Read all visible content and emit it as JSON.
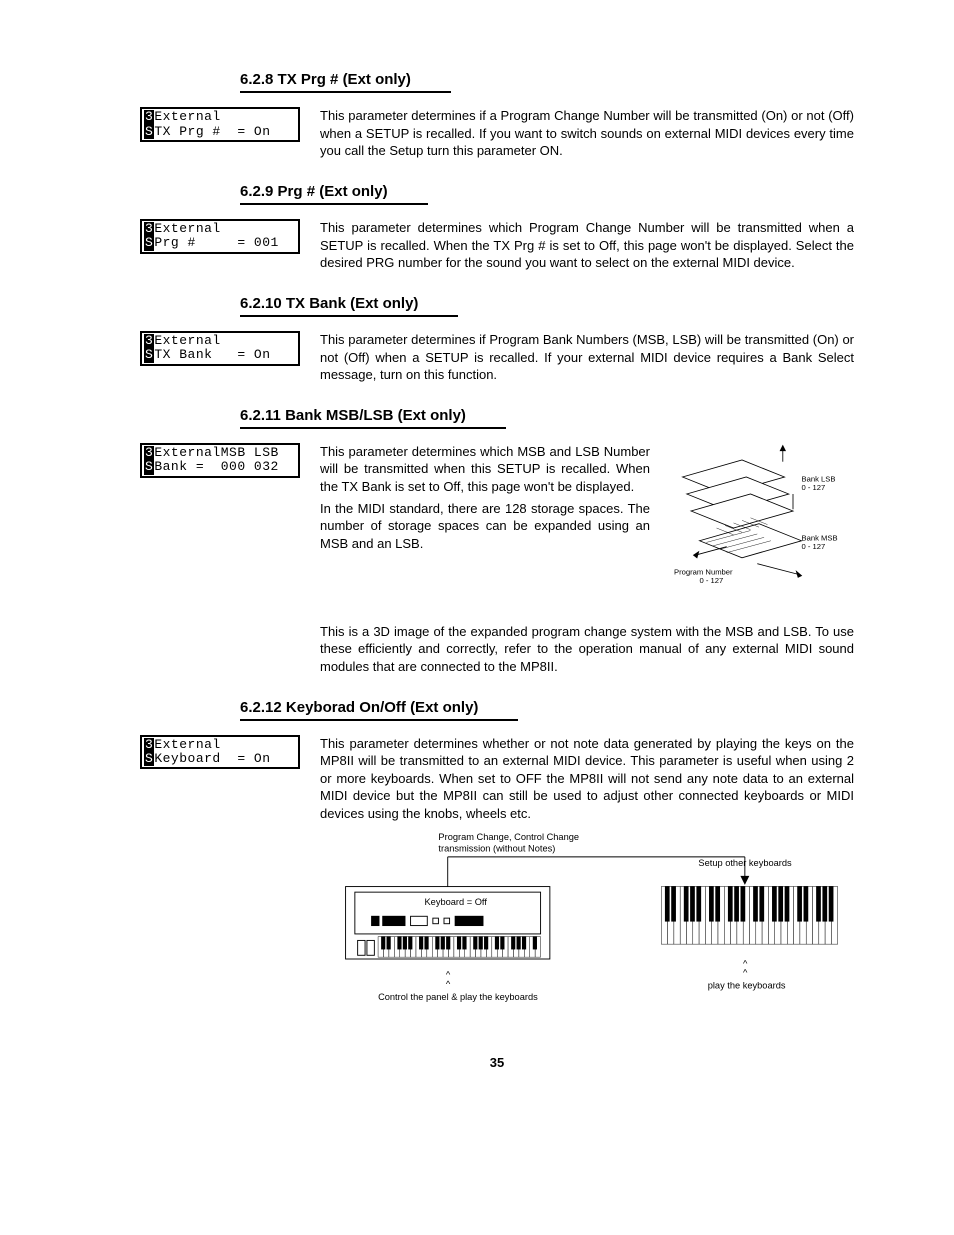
{
  "sections": [
    {
      "num": "6.2.8",
      "title": "TX Prg # (Ext only)",
      "lcd": {
        "l1p": "3",
        "l1": "External",
        "l2p": "S",
        "l2": "TX Prg #  = On"
      },
      "paras": [
        "This parameter determines if a Program Change Number will be transmitted (On) or not (Off) when a SETUP is recalled.  If you want to switch sounds on external MIDI devices every time you call the Setup turn this parameter ON."
      ]
    },
    {
      "num": "6.2.9",
      "title": "Prg # (Ext only)",
      "lcd": {
        "l1p": "3",
        "l1": "External",
        "l2p": "S",
        "l2": "Prg #     = 001"
      },
      "paras": [
        "This parameter determines which Program Change Number will be transmitted when a SETUP is recalled.  When the TX Prg # is set to Off, this page won't be displayed.  Select the desired PRG number for the sound you want to select on the external MIDI device."
      ]
    },
    {
      "num": "6.2.10",
      "title": "TX Bank (Ext only)",
      "lcd": {
        "l1p": "3",
        "l1": "External",
        "l2p": "S",
        "l2": "TX Bank   = On"
      },
      "paras": [
        "This parameter determines if Program Bank Numbers (MSB, LSB) will be transmitted (On) or not (Off) when a SETUP is recalled.  If your external MIDI device requires a Bank Select message, turn on this function."
      ]
    },
    {
      "num": "6.2.11",
      "title": "Bank MSB/LSB (Ext only)",
      "lcd": {
        "l1p": "3",
        "l1": "ExternalMSB LSB",
        "l2p": "S",
        "l2": "Bank =  000 032"
      },
      "paras": [
        "This parameter determines which MSB and LSB Number will be transmitted when this SETUP is recalled.  When the TX Bank is set to Off, this page won't be displayed.",
        "In the MIDI standard, there are 128 storage spaces.  The number of storage spaces can be expanded using an MSB and an LSB."
      ],
      "after": [
        "This is a 3D image of the expanded program change system with the MSB and LSB.  To use these efficiently and correctly, refer to the operation manual of any external MIDI sound modules that are connected to the MP8II."
      ]
    },
    {
      "num": "6.2.12",
      "title": "Keyborad On/Off (Ext only)",
      "lcd": {
        "l1p": "3",
        "l1": "External",
        "l2p": "S",
        "l2": "Keyboard  = On"
      },
      "paras": [
        "This parameter determines whether or not note data generated by playing the keys on the MP8II will be transmitted to an external MIDI device. This parameter is useful when using 2 or more keyboards. When set to OFF the MP8II will not send any note data to an external MIDI device but the MP8II can still be used to adjust other connected keyboards or MIDI devices using the knobs, wheels etc."
      ]
    }
  ],
  "diagram3d": {
    "labels": {
      "lsb": "Bank LSB",
      "lsb_r": "0 - 127",
      "msb": "Bank MSB",
      "msb_r": "0 - 127",
      "prg": "Program Number",
      "prg_r": "0 - 127"
    }
  },
  "diagramKb": {
    "top_l1": "Program Change, Control Change",
    "top_l2": "transmission (without Notes)",
    "setup": "Setup other keyboards",
    "kboff": "Keyboard = Off",
    "play": "play the keyboards",
    "ctrl": "Control the panel & play the keyboards"
  },
  "page": "35"
}
